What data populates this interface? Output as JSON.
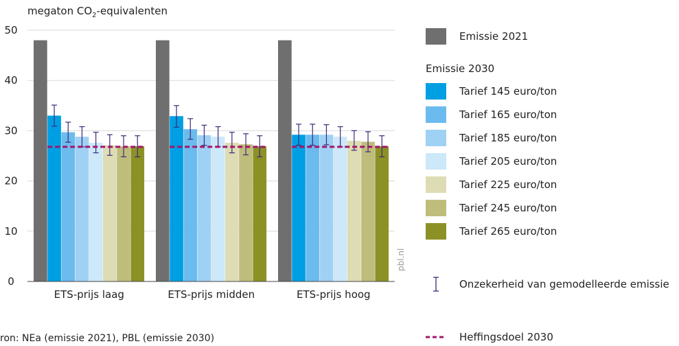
{
  "chart_data": {
    "type": "bar",
    "y_label_prefix": "megaton CO",
    "y_label_sub": "2",
    "y_label_suffix": "-equivalenten",
    "ylim": [
      0,
      50
    ],
    "yticks": [
      "0",
      "10",
      "20",
      "30",
      "40",
      "50"
    ],
    "ytick_values": [
      0,
      10,
      20,
      30,
      40,
      50
    ],
    "grid": true,
    "categories": [
      "ETS-prijs laag",
      "ETS-prijs midden",
      "ETS-prijs hoog"
    ],
    "series": [
      {
        "name": "Emissie 2021",
        "color": "#6f6f6f",
        "values": [
          48,
          48,
          48
        ],
        "err": null
      },
      {
        "name": "Tarief 145 euro/ton",
        "color": "#009fe3",
        "values": [
          33.0,
          32.9,
          29.2
        ],
        "err": [
          [
            30.9,
            35.1
          ],
          [
            30.7,
            35.0
          ],
          [
            27.1,
            31.3
          ]
        ]
      },
      {
        "name": "Tarief 165 euro/ton",
        "color": "#6cbbee",
        "values": [
          29.7,
          30.3,
          29.2
        ],
        "err": [
          [
            27.7,
            31.7
          ],
          [
            28.3,
            32.4
          ],
          [
            27.1,
            31.3
          ]
        ]
      },
      {
        "name": "Tarief 185 euro/ton",
        "color": "#9fd1f4",
        "values": [
          28.8,
          29.1,
          29.2
        ],
        "err": [
          [
            26.8,
            30.8
          ],
          [
            27.1,
            31.1
          ],
          [
            27.2,
            31.2
          ]
        ]
      },
      {
        "name": "Tarief 205 euro/ton",
        "color": "#cce8f9",
        "values": [
          27.6,
          28.8,
          28.8
        ],
        "err": [
          [
            25.6,
            29.7
          ],
          [
            26.8,
            30.8
          ],
          [
            26.8,
            30.8
          ]
        ]
      },
      {
        "name": "Tarief 225 euro/ton",
        "color": "#dddcb4",
        "values": [
          27.1,
          27.6,
          28.0
        ],
        "err": [
          [
            25.1,
            29.2
          ],
          [
            25.6,
            29.7
          ],
          [
            26.1,
            30.0
          ]
        ]
      },
      {
        "name": "Tarief 245 euro/ton",
        "color": "#bfbd7c",
        "values": [
          26.9,
          27.3,
          27.8
        ],
        "err": [
          [
            24.8,
            29.0
          ],
          [
            25.2,
            29.4
          ],
          [
            25.8,
            29.8
          ]
        ]
      },
      {
        "name": "Tarief 265 euro/ton",
        "color": "#8c9126",
        "values": [
          26.9,
          26.9,
          26.9
        ],
        "err": [
          [
            24.8,
            29.0
          ],
          [
            24.8,
            29.0
          ],
          [
            24.8,
            29.0
          ]
        ]
      }
    ],
    "target": {
      "name": "Heffingsdoel 2030",
      "value": 26.8,
      "color": "#a3156b"
    },
    "uncertainty_name": "Onzekerheid van gemodelleerde emissie",
    "errorbar_color": "#3a2a78",
    "legend_position": "right"
  },
  "legend": {
    "emissie2021": "Emissie 2021",
    "group_heading": "Emissie 2030",
    "uncertainty": "Onzekerheid van gemodelleerde emissie",
    "target": "Heffingsdoel 2030"
  },
  "source": "ron: NEa (emissie 2021), PBL (emissie 2030)",
  "watermark": "pbl.nl"
}
